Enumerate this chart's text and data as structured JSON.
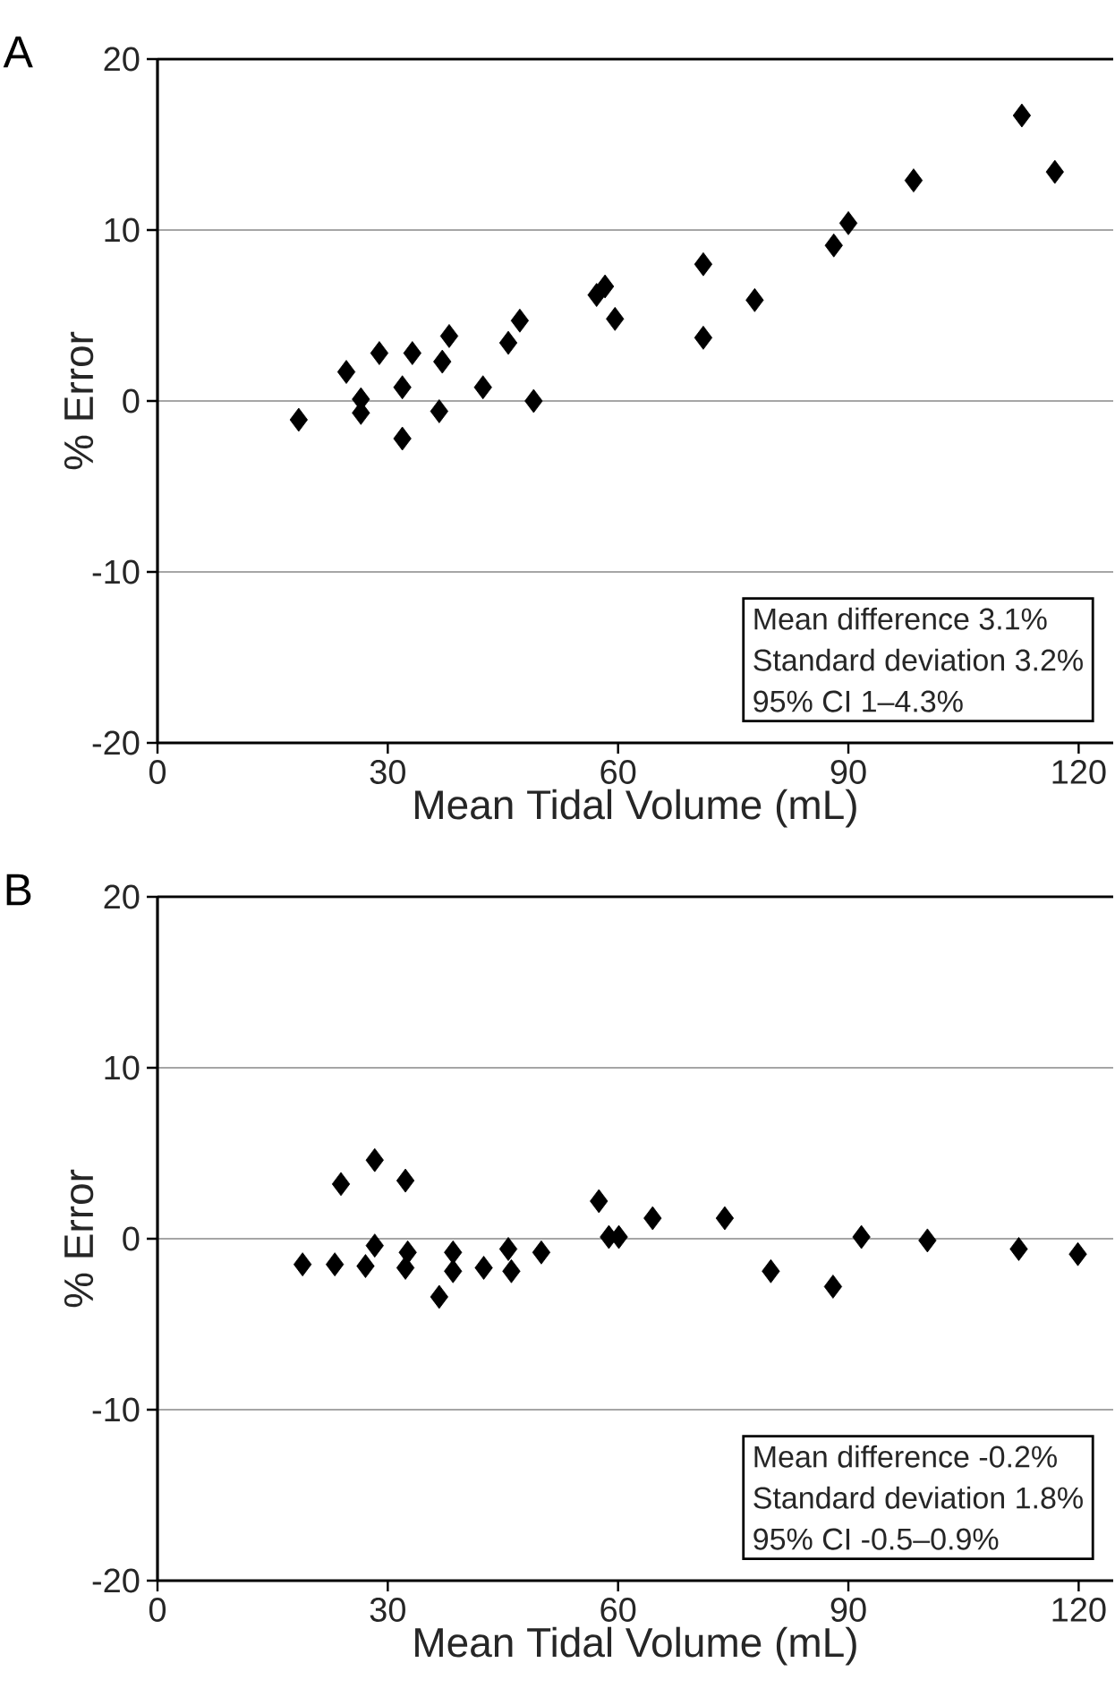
{
  "chart_data": [
    {
      "type": "scatter",
      "title": "A",
      "xlabel": "Mean Tidal Volume (mL)",
      "ylabel": "% Error",
      "color": "#000000",
      "marker": "diamond",
      "grid": "y",
      "x": [
        18.4,
        24.6,
        26.5,
        26.5,
        28.9,
        31.9,
        31.9,
        33.2,
        37.1,
        36.7,
        38.0,
        42.4,
        45.7,
        47.2,
        49.0,
        57.2,
        58.3,
        59.6,
        71.1,
        71.1,
        77.8,
        88.1,
        90.0,
        98.5,
        112.6,
        116.9
      ],
      "values": [
        -1.1,
        1.7,
        0.1,
        -0.7,
        2.8,
        0.8,
        -2.2,
        2.8,
        2.3,
        -0.6,
        3.8,
        0.8,
        3.4,
        4.7,
        0.0,
        6.2,
        6.7,
        4.8,
        8.0,
        3.7,
        5.9,
        9.1,
        10.4,
        12.9,
        16.7,
        13.4
      ],
      "xlim": [
        0,
        124.5
      ],
      "ylim": [
        -20,
        20
      ],
      "xticks": [
        0,
        30,
        60,
        90,
        120
      ],
      "yticks": [
        -20,
        -10,
        0,
        10,
        20
      ],
      "annotations": [
        "Mean difference 3.1%",
        "Standard deviation 3.2%",
        "95% CI 1–4.3%"
      ]
    },
    {
      "type": "scatter",
      "title": "B",
      "xlabel": "Mean Tidal Volume (mL)",
      "ylabel": "% Error",
      "color": "#000000",
      "marker": "diamond",
      "grid": "y",
      "x": [
        18.9,
        23.1,
        23.9,
        27.1,
        28.3,
        28.3,
        32.3,
        32.6,
        32.3,
        36.7,
        38.5,
        38.5,
        42.5,
        45.7,
        46.1,
        50.0,
        57.5,
        58.8,
        60.1,
        64.5,
        73.9,
        79.9,
        88.0,
        91.7,
        100.3,
        112.2,
        119.9
      ],
      "values": [
        -1.5,
        -1.5,
        3.2,
        -1.6,
        4.6,
        -0.4,
        3.4,
        -0.8,
        -1.7,
        -3.4,
        -0.8,
        -1.9,
        -1.7,
        -0.6,
        -1.9,
        -0.8,
        2.2,
        0.1,
        0.1,
        1.2,
        1.2,
        -1.9,
        -2.8,
        0.1,
        -0.1,
        -0.6,
        -0.9
      ],
      "xlim": [
        0,
        124.5
      ],
      "ylim": [
        -20,
        20
      ],
      "xticks": [
        0,
        30,
        60,
        90,
        120
      ],
      "yticks": [
        -20,
        -10,
        0,
        10,
        20
      ],
      "annotations": [
        "Mean difference -0.2%",
        "Standard deviation 1.8%",
        "95% CI -0.5–0.9%"
      ]
    }
  ]
}
